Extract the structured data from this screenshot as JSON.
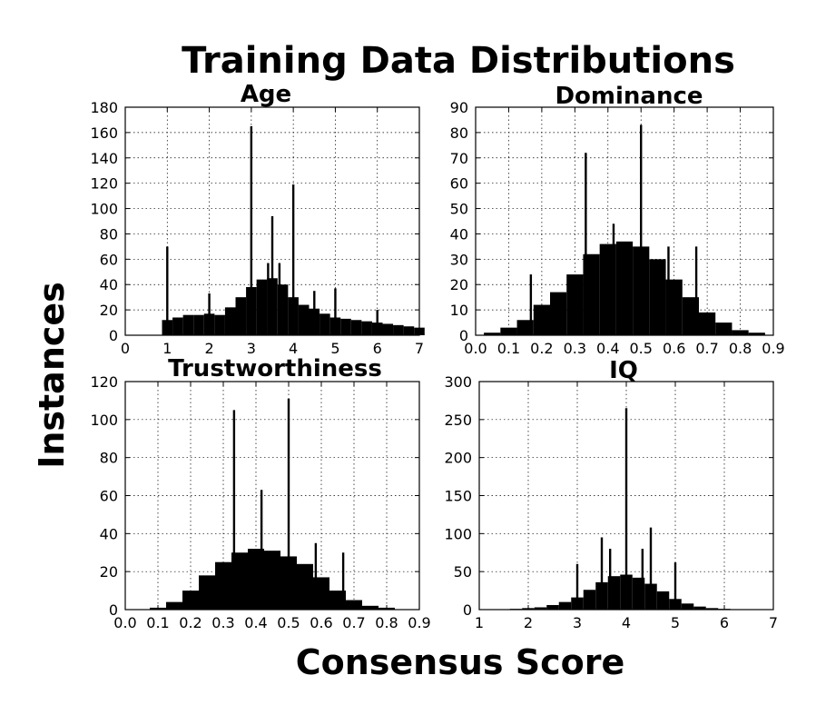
{
  "figure": {
    "title": "Training Data Distributions",
    "xlabel": "Consensus Score",
    "ylabel": "Instances"
  },
  "chart_data": [
    {
      "type": "bar",
      "id": "age",
      "title": "Age",
      "xlim": [
        0,
        7
      ],
      "ylim": [
        0,
        180
      ],
      "xticks": [
        "0",
        "1",
        "2",
        "3",
        "4",
        "5",
        "6",
        "7"
      ],
      "yticks": [
        "0",
        "20",
        "40",
        "60",
        "80",
        "100",
        "120",
        "140",
        "160",
        "180"
      ],
      "grid": true,
      "bins": {
        "x": [
          1.0,
          1.25,
          1.5,
          1.75,
          2.0,
          2.25,
          2.5,
          2.75,
          3.0,
          3.25,
          3.5,
          3.75,
          4.0,
          4.25,
          4.5,
          4.75,
          5.0,
          5.25,
          5.5,
          5.75,
          6.0,
          6.25,
          6.5,
          6.75,
          7.0
        ],
        "y": [
          12,
          14,
          16,
          16,
          17,
          16,
          22,
          30,
          38,
          44,
          45,
          40,
          30,
          24,
          21,
          17,
          14,
          13,
          12,
          11,
          10,
          9,
          8,
          7,
          6
        ]
      },
      "spikes": [
        {
          "x": 1.0,
          "y": 70
        },
        {
          "x": 2.0,
          "y": 33
        },
        {
          "x": 3.0,
          "y": 165
        },
        {
          "x": 3.4,
          "y": 57
        },
        {
          "x": 3.5,
          "y": 94
        },
        {
          "x": 3.67,
          "y": 57
        },
        {
          "x": 4.0,
          "y": 119
        },
        {
          "x": 4.5,
          "y": 35
        },
        {
          "x": 5.0,
          "y": 37
        },
        {
          "x": 6.0,
          "y": 20
        }
      ]
    },
    {
      "type": "bar",
      "id": "dominance",
      "title": "Dominance",
      "xlim": [
        0.0,
        0.9
      ],
      "ylim": [
        0,
        90
      ],
      "xticks": [
        "0.0",
        "0.1",
        "0.2",
        "0.3",
        "0.4",
        "0.5",
        "0.6",
        "0.7",
        "0.8",
        "0.9"
      ],
      "yticks": [
        "0",
        "10",
        "20",
        "30",
        "40",
        "50",
        "60",
        "70",
        "80",
        "90"
      ],
      "grid": true,
      "bins": {
        "x": [
          0.05,
          0.1,
          0.15,
          0.2,
          0.25,
          0.3,
          0.35,
          0.4,
          0.45,
          0.5,
          0.55,
          0.6,
          0.65,
          0.7,
          0.75,
          0.8,
          0.85
        ],
        "y": [
          1,
          3,
          6,
          12,
          17,
          24,
          32,
          36,
          37,
          35,
          30,
          22,
          15,
          9,
          5,
          2,
          1
        ]
      },
      "spikes": [
        {
          "x": 0.167,
          "y": 24
        },
        {
          "x": 0.333,
          "y": 72
        },
        {
          "x": 0.417,
          "y": 44
        },
        {
          "x": 0.5,
          "y": 83
        },
        {
          "x": 0.583,
          "y": 35
        },
        {
          "x": 0.667,
          "y": 35
        }
      ]
    },
    {
      "type": "bar",
      "id": "trustworthiness",
      "title": "Trustworthiness",
      "xlim": [
        0.0,
        0.9
      ],
      "ylim": [
        0,
        120
      ],
      "xticks": [
        "0.0",
        "0.1",
        "0.2",
        "0.3",
        "0.4",
        "0.5",
        "0.6",
        "0.7",
        "0.8",
        "0.9"
      ],
      "yticks": [
        "0",
        "20",
        "40",
        "60",
        "80",
        "100",
        "120"
      ],
      "grid": true,
      "bins": {
        "x": [
          0.05,
          0.1,
          0.15,
          0.2,
          0.25,
          0.3,
          0.35,
          0.4,
          0.45,
          0.5,
          0.55,
          0.6,
          0.65,
          0.7,
          0.75,
          0.8
        ],
        "y": [
          0,
          1,
          4,
          10,
          18,
          25,
          30,
          32,
          31,
          28,
          24,
          17,
          10,
          5,
          2,
          1
        ]
      },
      "spikes": [
        {
          "x": 0.333,
          "y": 105
        },
        {
          "x": 0.417,
          "y": 63
        },
        {
          "x": 0.5,
          "y": 111
        },
        {
          "x": 0.583,
          "y": 35
        },
        {
          "x": 0.667,
          "y": 30
        }
      ]
    },
    {
      "type": "bar",
      "id": "iq",
      "title": "IQ",
      "xlim": [
        1,
        7
      ],
      "ylim": [
        0,
        300
      ],
      "xticks": [
        "1",
        "2",
        "3",
        "4",
        "5",
        "6",
        "7"
      ],
      "yticks": [
        "0",
        "50",
        "100",
        "150",
        "200",
        "250",
        "300"
      ],
      "grid": true,
      "bins": {
        "x": [
          1.75,
          2.0,
          2.25,
          2.5,
          2.75,
          3.0,
          3.25,
          3.5,
          3.75,
          4.0,
          4.25,
          4.5,
          4.75,
          5.0,
          5.25,
          5.5,
          5.75,
          6.0
        ],
        "y": [
          1,
          2,
          3,
          6,
          10,
          16,
          26,
          36,
          44,
          46,
          42,
          34,
          24,
          14,
          8,
          4,
          2,
          1
        ]
      },
      "spikes": [
        {
          "x": 3.0,
          "y": 60
        },
        {
          "x": 3.5,
          "y": 95
        },
        {
          "x": 3.67,
          "y": 80
        },
        {
          "x": 4.0,
          "y": 265
        },
        {
          "x": 4.33,
          "y": 80
        },
        {
          "x": 4.5,
          "y": 108
        },
        {
          "x": 5.0,
          "y": 62
        }
      ]
    }
  ]
}
